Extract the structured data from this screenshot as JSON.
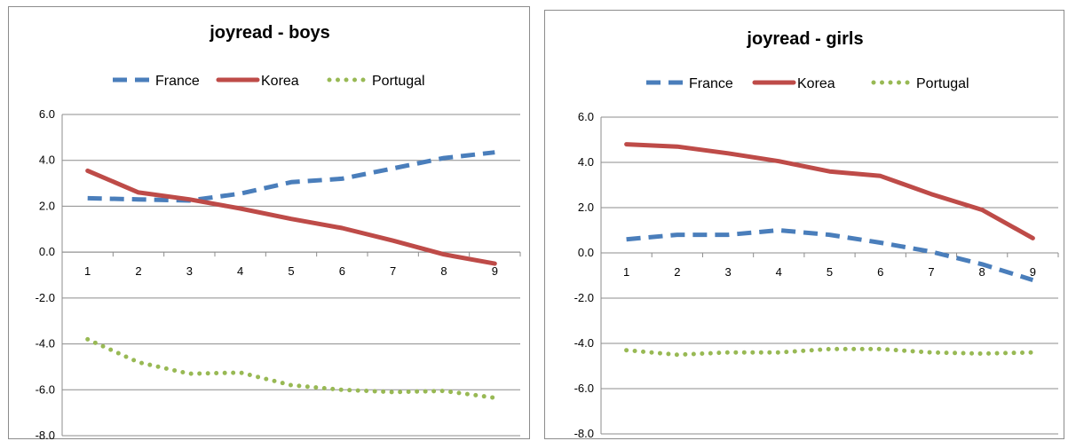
{
  "chart_data": [
    {
      "type": "line",
      "title": "joyread - boys",
      "xlabel": "",
      "ylabel": "",
      "categories": [
        "1",
        "2",
        "3",
        "4",
        "5",
        "6",
        "7",
        "8",
        "9"
      ],
      "ylim": [
        -8,
        6
      ],
      "y_ticks": [
        "6.0",
        "4.0",
        "2.0",
        "0.0",
        "-2.0",
        "-4.0",
        "-6.0",
        "-8.0"
      ],
      "grid": true,
      "legend_position": "top",
      "series": [
        {
          "name": "France",
          "color": "#4a7ebb",
          "style": "dashed",
          "values": [
            2.35,
            2.3,
            2.25,
            2.55,
            3.05,
            3.2,
            3.65,
            4.1,
            4.35
          ]
        },
        {
          "name": "Korea",
          "color": "#be4b48",
          "style": "solid",
          "values": [
            3.55,
            2.6,
            2.3,
            1.9,
            1.45,
            1.05,
            0.5,
            -0.1,
            -0.5
          ]
        },
        {
          "name": "Portugal",
          "color": "#98b954",
          "style": "dotted",
          "values": [
            -3.8,
            -4.8,
            -5.3,
            -5.25,
            -5.8,
            -6.0,
            -6.1,
            -6.05,
            -6.35
          ]
        }
      ]
    },
    {
      "type": "line",
      "title": "joyread - girls",
      "xlabel": "",
      "ylabel": "",
      "categories": [
        "1",
        "2",
        "3",
        "4",
        "5",
        "6",
        "7",
        "8",
        "9"
      ],
      "ylim": [
        -8,
        6
      ],
      "y_ticks": [
        "6.0",
        "4.0",
        "2.0",
        "0.0",
        "-2.0",
        "-4.0",
        "-6.0",
        "-8.0"
      ],
      "grid": true,
      "legend_position": "top",
      "series": [
        {
          "name": "France",
          "color": "#4a7ebb",
          "style": "dashed",
          "values": [
            0.6,
            0.8,
            0.8,
            1.0,
            0.8,
            0.45,
            0.05,
            -0.5,
            -1.2
          ]
        },
        {
          "name": "Korea",
          "color": "#be4b48",
          "style": "solid",
          "values": [
            4.8,
            4.7,
            4.4,
            4.05,
            3.6,
            3.4,
            2.6,
            1.9,
            0.65
          ]
        },
        {
          "name": "Portugal",
          "color": "#98b954",
          "style": "dotted",
          "values": [
            -4.3,
            -4.5,
            -4.4,
            -4.4,
            -4.25,
            -4.25,
            -4.4,
            -4.45,
            -4.4
          ]
        }
      ]
    }
  ]
}
